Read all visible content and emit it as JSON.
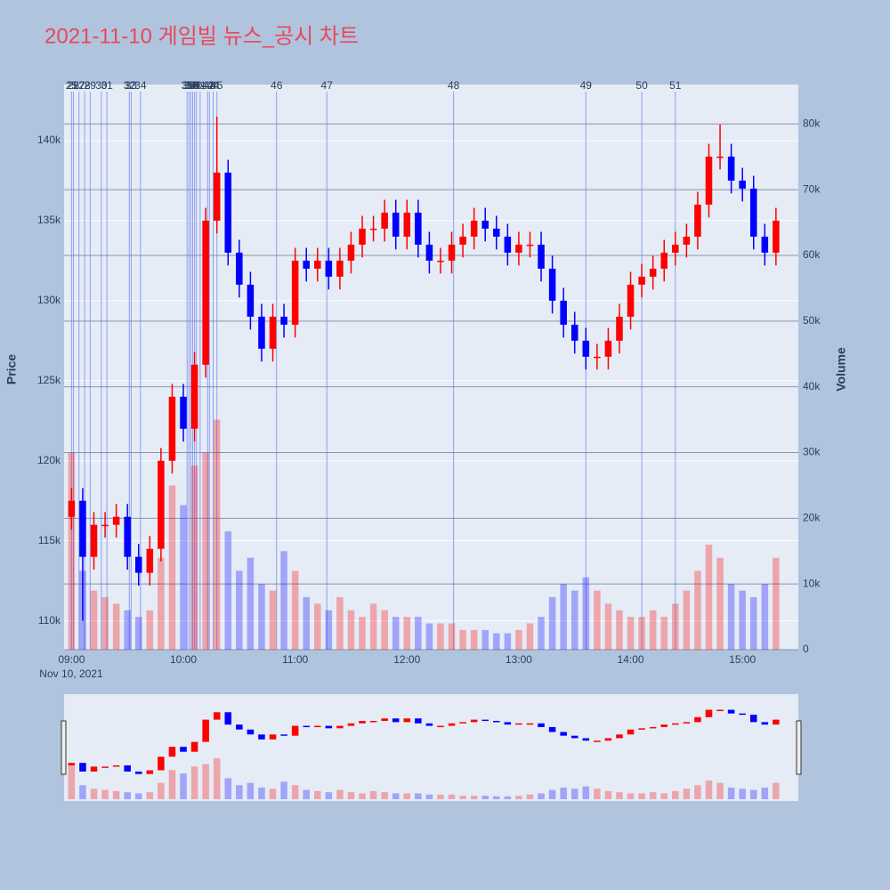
{
  "chart_data": {
    "type": "candlestick",
    "title": "2021-11-10 게임빌 뉴스_공시 차트",
    "x_date_label": "Nov 10, 2021",
    "ylabel": "Price",
    "y2label": "Volume",
    "increasing_color": "#ff0000",
    "decreasing_color": "#0000ff",
    "event_color": "#6a7ef0",
    "x": [
      "09:00",
      "09:06",
      "09:12",
      "09:18",
      "09:24",
      "09:30",
      "09:36",
      "09:42",
      "09:48",
      "09:54",
      "10:00",
      "10:06",
      "10:12",
      "10:18",
      "10:24",
      "10:30",
      "10:36",
      "10:42",
      "10:48",
      "10:54",
      "11:00",
      "11:06",
      "11:12",
      "11:18",
      "11:24",
      "11:30",
      "11:36",
      "11:42",
      "11:48",
      "11:54",
      "12:00",
      "12:06",
      "12:12",
      "12:18",
      "12:24",
      "12:30",
      "12:36",
      "12:42",
      "12:48",
      "12:54",
      "13:00",
      "13:06",
      "13:12",
      "13:18",
      "13:24",
      "13:30",
      "13:36",
      "13:42",
      "13:48",
      "13:54",
      "14:00",
      "14:06",
      "14:12",
      "14:18",
      "14:24",
      "14:30",
      "14:36",
      "14:42",
      "14:48",
      "14:54",
      "15:00",
      "15:06",
      "15:12",
      "15:18"
    ],
    "open": [
      116500,
      117500,
      114000,
      116000,
      116000,
      116500,
      114000,
      113000,
      114500,
      120000,
      124000,
      122000,
      126000,
      135000,
      138000,
      133000,
      131000,
      129000,
      127000,
      129000,
      128500,
      132500,
      132000,
      132500,
      131500,
      132500,
      133500,
      134500,
      134500,
      135500,
      134000,
      135500,
      133500,
      132500,
      132500,
      133500,
      134000,
      135000,
      134500,
      134000,
      133000,
      133500,
      133500,
      132000,
      130000,
      128500,
      127500,
      126500,
      126500,
      127500,
      129000,
      131000,
      131500,
      132000,
      133000,
      133500,
      134000,
      136000,
      139000,
      139000,
      137500,
      137000,
      134000,
      133000
    ],
    "high": [
      118300,
      118300,
      116800,
      116800,
      117300,
      117300,
      114800,
      115300,
      120800,
      124800,
      124800,
      126800,
      135800,
      141500,
      138800,
      133800,
      131800,
      129800,
      129800,
      129800,
      133300,
      133300,
      133300,
      133300,
      133300,
      134300,
      135300,
      135300,
      136300,
      136300,
      136300,
      136300,
      134300,
      133300,
      134300,
      134800,
      135800,
      135800,
      135300,
      134800,
      134300,
      134300,
      134300,
      132800,
      130800,
      129300,
      128300,
      127300,
      128300,
      129800,
      131800,
      132300,
      132800,
      133800,
      134300,
      134800,
      136800,
      139800,
      141000,
      139800,
      138300,
      137800,
      134800,
      135800
    ],
    "low": [
      115700,
      110000,
      113200,
      115200,
      115200,
      113200,
      112200,
      112200,
      113700,
      119200,
      121200,
      121200,
      125200,
      134200,
      132200,
      130200,
      128200,
      126200,
      126200,
      127700,
      127700,
      131200,
      131200,
      130700,
      130700,
      131700,
      132700,
      133700,
      133700,
      133200,
      133200,
      132700,
      131700,
      131700,
      131700,
      132700,
      133200,
      133700,
      133200,
      132200,
      132200,
      132700,
      131200,
      129200,
      127700,
      126700,
      125700,
      125700,
      125700,
      126700,
      128200,
      130200,
      130700,
      131200,
      132200,
      132700,
      133200,
      135200,
      138200,
      136700,
      136200,
      133200,
      132200,
      132200
    ],
    "close": [
      117500,
      114000,
      116000,
      116000,
      116500,
      114000,
      113000,
      114500,
      120000,
      124000,
      122000,
      126000,
      135000,
      138000,
      133000,
      131000,
      129000,
      127000,
      129000,
      128500,
      132500,
      132000,
      132500,
      131500,
      132500,
      133500,
      134500,
      134500,
      135500,
      134000,
      135500,
      133500,
      132500,
      132500,
      133500,
      134000,
      135000,
      134500,
      134000,
      133000,
      133500,
      133500,
      132000,
      130000,
      128500,
      127500,
      126500,
      126500,
      127500,
      129000,
      131000,
      131500,
      132000,
      133000,
      133500,
      134000,
      136000,
      139000,
      139000,
      137500,
      137000,
      134000,
      133000,
      135000
    ],
    "volume": [
      30000,
      12000,
      9000,
      8000,
      7000,
      6000,
      5000,
      6000,
      14000,
      25000,
      22000,
      28000,
      30000,
      35000,
      18000,
      12000,
      14000,
      10000,
      9000,
      15000,
      12000,
      8000,
      7000,
      6000,
      8000,
      6000,
      5000,
      7000,
      6000,
      5000,
      5000,
      5000,
      4000,
      4000,
      4000,
      3000,
      3000,
      3000,
      2500,
      2500,
      3000,
      4000,
      5000,
      8000,
      10000,
      9000,
      11000,
      9000,
      7000,
      6000,
      5000,
      5000,
      6000,
      5000,
      7000,
      9000,
      12000,
      16000,
      14000,
      10000,
      9000,
      8000,
      10000,
      14000
    ],
    "xlim": [
      "08:56",
      "15:30"
    ],
    "xticks": [
      "09:00",
      "10:00",
      "11:00",
      "12:00",
      "13:00",
      "14:00",
      "15:00"
    ],
    "ylim": [
      108200,
      143500
    ],
    "yticks": [
      {
        "value": 110000,
        "label": "110k"
      },
      {
        "value": 115000,
        "label": "115k"
      },
      {
        "value": 120000,
        "label": "120k"
      },
      {
        "value": 125000,
        "label": "125k"
      },
      {
        "value": 130000,
        "label": "130k"
      },
      {
        "value": 135000,
        "label": "135k"
      },
      {
        "value": 140000,
        "label": "140k"
      }
    ],
    "y2lim": [
      0,
      86000
    ],
    "y2ticks": [
      0,
      {
        "value": 10000,
        "label": "10k"
      },
      {
        "value": 20000,
        "label": "20k"
      },
      {
        "value": 30000,
        "label": "30k"
      },
      {
        "value": 40000,
        "label": "40k"
      },
      {
        "value": 50000,
        "label": "50k"
      },
      {
        "value": 60000,
        "label": "60k"
      },
      {
        "value": 70000,
        "label": "70k"
      },
      {
        "value": 80000,
        "label": "80k"
      }
    ],
    "events": [
      {
        "x": "09:00",
        "label": "25"
      },
      {
        "x": "09:01",
        "label": "26"
      },
      {
        "x": "09:04",
        "label": "27"
      },
      {
        "x": "09:07",
        "label": "28"
      },
      {
        "x": "09:10",
        "label": "29"
      },
      {
        "x": "09:16",
        "label": "30"
      },
      {
        "x": "09:19",
        "label": "31"
      },
      {
        "x": "09:31",
        "label": "32"
      },
      {
        "x": "09:32",
        "label": "33"
      },
      {
        "x": "09:37",
        "label": "34"
      },
      {
        "x": "10:02",
        "label": "35"
      },
      {
        "x": "10:03",
        "label": "36"
      },
      {
        "x": "10:04",
        "label": "37"
      },
      {
        "x": "10:05",
        "label": "38"
      },
      {
        "x": "10:06",
        "label": "39"
      },
      {
        "x": "10:07",
        "label": "40"
      },
      {
        "x": "10:09",
        "label": "41"
      },
      {
        "x": "10:13",
        "label": "42"
      },
      {
        "x": "10:14",
        "label": "43"
      },
      {
        "x": "10:16",
        "label": "44"
      },
      {
        "x": "10:18",
        "label": "45"
      },
      {
        "x": "10:50",
        "label": "46"
      },
      {
        "x": "11:17",
        "label": "47"
      },
      {
        "x": "12:25",
        "label": "48"
      },
      {
        "x": "13:36",
        "label": "49"
      },
      {
        "x": "14:06",
        "label": "50"
      },
      {
        "x": "14:24",
        "label": "51"
      }
    ]
  }
}
